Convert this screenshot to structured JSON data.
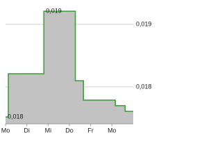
{
  "chart_data": {
    "type": "step-area",
    "x": [
      0,
      0.13,
      1.8,
      3.28,
      3.66,
      5.16,
      5.62,
      6.0
    ],
    "values": [
      0.01752,
      0.01821,
      0.01921,
      0.0181,
      0.01779,
      0.0177,
      0.01761,
      0.01761
    ],
    "value_labels": [
      "0,018",
      null,
      "0,019",
      null,
      null,
      null,
      null,
      null
    ],
    "line_color": "#3a9a3a",
    "fill_color": "#c2c2c2",
    "xlim": [
      0,
      6.0
    ],
    "ylim": [
      0.01741,
      0.0193
    ],
    "xticks": [
      {
        "value": 0,
        "label": "Mo"
      },
      {
        "value": 1,
        "label": "Di"
      },
      {
        "value": 2,
        "label": "Mi"
      },
      {
        "value": 3,
        "label": "Do"
      },
      {
        "value": 4,
        "label": "Fr"
      },
      {
        "value": 5,
        "label": "Mo"
      }
    ],
    "yticks": [
      {
        "value": 0.018,
        "label": "0,018"
      },
      {
        "value": 0.019,
        "label": "0,019"
      }
    ],
    "grid": true
  }
}
